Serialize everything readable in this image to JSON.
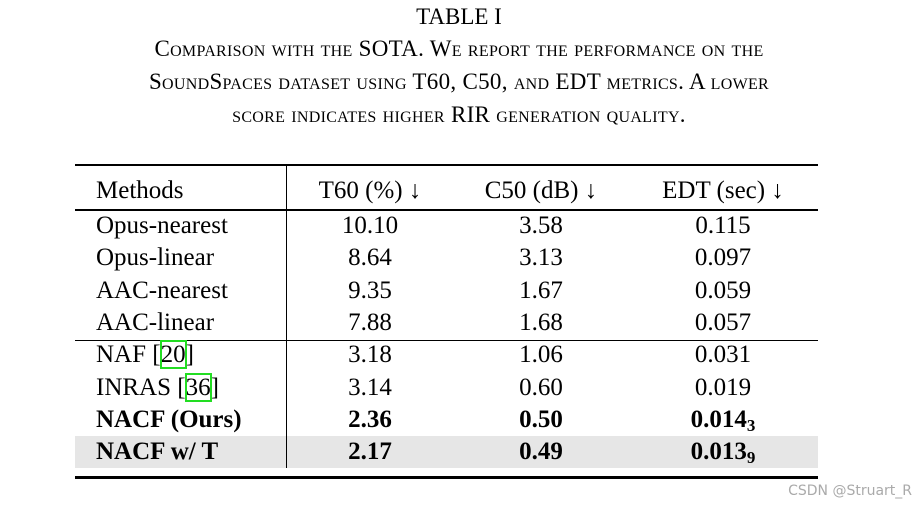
{
  "title": "TABLE I",
  "caption_lines": [
    "Comparison with the SOTA. We report the performance on the",
    "SoundSpaces dataset using T60, C50, and EDT metrics. A lower",
    "score indicates higher RIR generation quality."
  ],
  "table": {
    "headers": [
      "Methods",
      "T60 (%) ↓",
      "C50 (dB) ↓",
      "EDT (sec) ↓"
    ],
    "rows": [
      {
        "cells": [
          "Opus-nearest",
          "10.10",
          "3.58",
          "0.115"
        ]
      },
      {
        "cells": [
          "Opus-linear",
          "8.64",
          "3.13",
          "0.097"
        ]
      },
      {
        "cells": [
          "AAC-nearest",
          "9.35",
          "1.67",
          "0.059"
        ]
      },
      {
        "cells": [
          "AAC-linear",
          "7.88",
          "1.68",
          "0.057"
        ]
      },
      {
        "cells": [
          {
            "pre": "NAF [",
            "cite": "20",
            "post": "]"
          },
          "3.18",
          "1.06",
          "0.031"
        ],
        "rule_above": true
      },
      {
        "cells": [
          {
            "pre": "INRAS [",
            "cite": "36",
            "post": "]"
          },
          "3.14",
          "0.60",
          "0.019"
        ]
      },
      {
        "cells": [
          "NACF (Ours)",
          "2.36",
          "0.50",
          {
            "main": "0.014",
            "sub": "3"
          }
        ],
        "bold": true
      },
      {
        "cells": [
          "NACF w/ T",
          "2.17",
          "0.49",
          {
            "main": "0.013",
            "sub": "9"
          }
        ],
        "bold": true,
        "shaded": true
      }
    ]
  },
  "watermark": "CSDN @Struart_R"
}
